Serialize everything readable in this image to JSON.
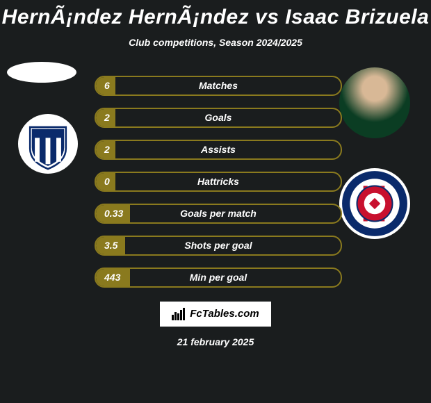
{
  "title": "HernÃ¡ndez HernÃ¡ndez vs Isaac Brizuela",
  "subtitle": "Club competitions, Season 2024/2025",
  "colors": {
    "background": "#1a1d1e",
    "bar_border": "#8a7a1e",
    "bar_fill": "#8a7a1e",
    "text": "#ffffff",
    "logo_bg": "#ffffff",
    "logo_text": "#000000"
  },
  "typography": {
    "title_fontsize": 30,
    "subtitle_fontsize": 14,
    "bar_label_fontsize": 14,
    "font_weight": 900,
    "font_style": "italic"
  },
  "stats": [
    {
      "label": "Matches",
      "left_value": "6",
      "right_value": "",
      "left_pct": 8,
      "right_pct": 0
    },
    {
      "label": "Goals",
      "left_value": "2",
      "right_value": "",
      "left_pct": 8,
      "right_pct": 0
    },
    {
      "label": "Assists",
      "left_value": "2",
      "right_value": "",
      "left_pct": 8,
      "right_pct": 0
    },
    {
      "label": "Hattricks",
      "left_value": "0",
      "right_value": "",
      "left_pct": 8,
      "right_pct": 0
    },
    {
      "label": "Goals per match",
      "left_value": "0.33",
      "right_value": "",
      "left_pct": 14,
      "right_pct": 0
    },
    {
      "label": "Shots per goal",
      "left_value": "3.5",
      "right_value": "",
      "left_pct": 12,
      "right_pct": 0
    },
    {
      "label": "Min per goal",
      "left_value": "443",
      "right_value": "",
      "left_pct": 14,
      "right_pct": 0
    }
  ],
  "logo_text": "FcTables.com",
  "date": "21 february 2025",
  "club_left_name": "Pachuca",
  "club_left_colors": {
    "shield": "#0a2a6b",
    "stripe": "#ffffff"
  },
  "club_right_name": "Guadalajara",
  "club_right_colors": {
    "ring": "#0a2a6b",
    "red": "#c8102e",
    "white": "#ffffff"
  }
}
